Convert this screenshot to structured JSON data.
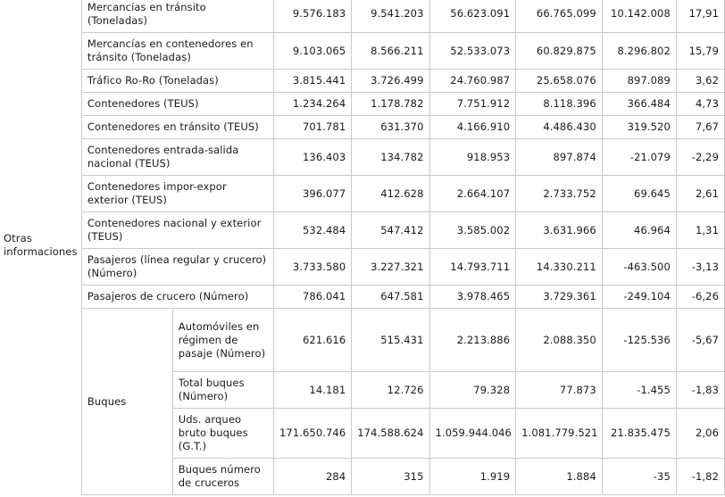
{
  "group_label": "Otras informaciones",
  "buques_label": "Buques",
  "rows": [
    {
      "label": "Mercancías en tránsito (Toneladas)",
      "values": [
        "9.576.183",
        "9.541.203",
        "56.623.091",
        "66.765.099",
        "10.142.008",
        "17,91"
      ]
    },
    {
      "label": "Mercancías en contenedores en tránsito (Toneladas)",
      "values": [
        "9.103.065",
        "8.566.211",
        "52.533.073",
        "60.829.875",
        "8.296.802",
        "15,79"
      ]
    },
    {
      "label": "Tráfico Ro-Ro (Toneladas)",
      "values": [
        "3.815.441",
        "3.726.499",
        "24.760.987",
        "25.658.076",
        "897.089",
        "3,62"
      ]
    },
    {
      "label": "Contenedores (TEUS)",
      "values": [
        "1.234.264",
        "1.178.782",
        "7.751.912",
        "8.118.396",
        "366.484",
        "4,73"
      ]
    },
    {
      "label": "Contenedores en tránsito (TEUS)",
      "values": [
        "701.781",
        "631.370",
        "4.166.910",
        "4.486.430",
        "319.520",
        "7,67"
      ]
    },
    {
      "label": "Contenedores entrada-salida nacional (TEUS)",
      "values": [
        "136.403",
        "134.782",
        "918.953",
        "897.874",
        "-21.079",
        "-2,29"
      ]
    },
    {
      "label": "Contenedores impor-expor exterior (TEUS)",
      "values": [
        "396.077",
        "412.628",
        "2.664.107",
        "2.733.752",
        "69.645",
        "2,61"
      ]
    },
    {
      "label": "Contenedores nacional y exterior (TEUS)",
      "values": [
        "532.484",
        "547.412",
        "3.585.002",
        "3.631.966",
        "46.964",
        "1,31"
      ]
    },
    {
      "label": "Pasajeros (línea regular y crucero) (Número)",
      "values": [
        "3.733.580",
        "3.227.321",
        "14.793.711",
        "14.330.211",
        "-463.500",
        "-3,13"
      ]
    },
    {
      "label": "Pasajeros de crucero (Número)",
      "values": [
        "786.041",
        "647.581",
        "3.978.465",
        "3.729.361",
        "-249.104",
        "-6,26"
      ]
    }
  ],
  "buques_rows": [
    {
      "label": "Automóviles en régimen de pasaje (Número)",
      "values": [
        "621.616",
        "515.431",
        "2.213.886",
        "2.088.350",
        "-125.536",
        "-5,67"
      ]
    },
    {
      "label": "Total buques (Número)",
      "values": [
        "14.181",
        "12.726",
        "79.328",
        "77.873",
        "-1.455",
        "-1,83"
      ]
    },
    {
      "label": "Uds. arqueo bruto buques (G.T.)",
      "values": [
        "171.650.746",
        "174.588.624",
        "1.059.944.046",
        "1.081.779.521",
        "21.835.475",
        "2,06"
      ]
    },
    {
      "label": "Buques número de cruceros",
      "values": [
        "284",
        "315",
        "1.919",
        "1.884",
        "-35",
        "-1,82"
      ]
    }
  ]
}
